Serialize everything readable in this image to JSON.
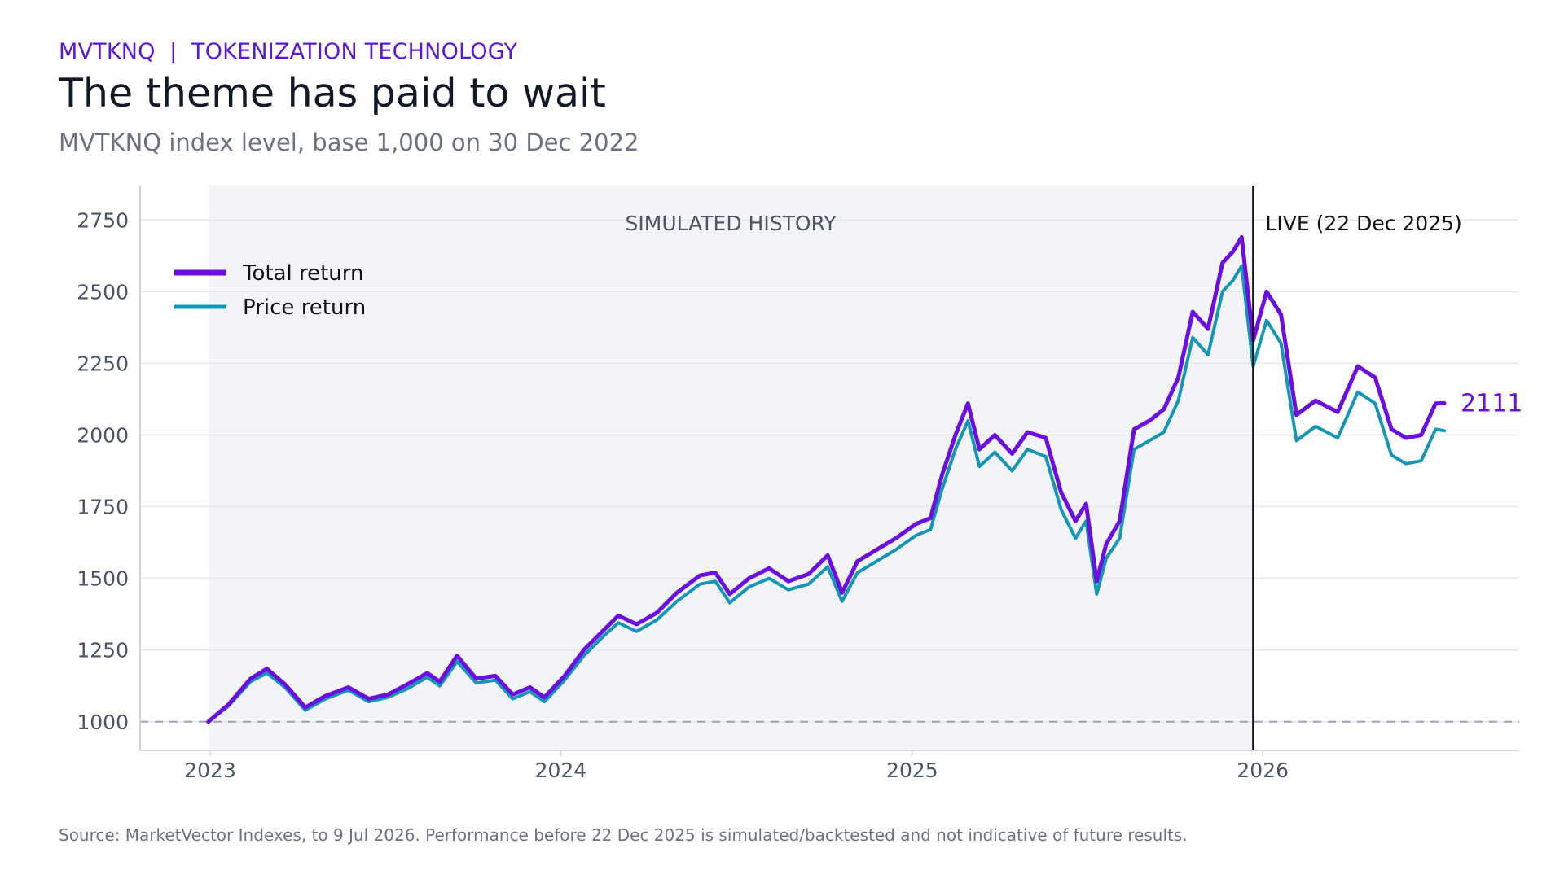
{
  "header": {
    "kicker": "MVTKNQ  |  TOKENIZATION TECHNOLOGY",
    "title": "The theme has paid to wait",
    "subtitle": "MVTKNQ index level, base 1,000 on 30 Dec 2022"
  },
  "footer": {
    "source": "Source: MarketVector Indexes, to 9 Jul 2026. Performance before 22 Dec 2025 is simulated/backtested and not indicative of future results."
  },
  "colors": {
    "kicker": "#5b17d6",
    "total_return": "#6a0fe0",
    "price_return": "#1497b5",
    "band": "#f3f4f8",
    "grid": "#e5e7eb",
    "baseline_dash": "#9ca3af",
    "live_line": "#111111"
  },
  "chart_data": {
    "type": "line",
    "title": "The theme has paid to wait",
    "ylim": [
      900,
      2870
    ],
    "xlim": [
      "2022-10-20",
      "2026-09-25"
    ],
    "yticks": [
      1000,
      1250,
      1500,
      1750,
      2000,
      2250,
      2500,
      2750
    ],
    "xticks": [
      {
        "date": "2023-01-01",
        "label": "2023"
      },
      {
        "date": "2024-01-01",
        "label": "2024"
      },
      {
        "date": "2025-01-01",
        "label": "2025"
      },
      {
        "date": "2026-01-01",
        "label": "2026"
      }
    ],
    "grid": true,
    "legend_position": "top-left",
    "baseline": 1000,
    "shaded_region": {
      "start": "2022-12-30",
      "end": "2025-12-22",
      "label": "SIMULATED HISTORY"
    },
    "live_marker": {
      "date": "2025-12-22",
      "label": "LIVE (22 Dec 2025)"
    },
    "end_label": "2111",
    "series": [
      {
        "name": "Total return",
        "points": [
          [
            "2022-12-30",
            1000
          ],
          [
            "2023-01-20",
            1060
          ],
          [
            "2023-02-12",
            1150
          ],
          [
            "2023-03-01",
            1185
          ],
          [
            "2023-03-20",
            1130
          ],
          [
            "2023-04-10",
            1050
          ],
          [
            "2023-05-01",
            1090
          ],
          [
            "2023-05-25",
            1120
          ],
          [
            "2023-06-15",
            1080
          ],
          [
            "2023-07-05",
            1095
          ],
          [
            "2023-07-25",
            1130
          ],
          [
            "2023-08-15",
            1170
          ],
          [
            "2023-08-28",
            1140
          ],
          [
            "2023-09-15",
            1230
          ],
          [
            "2023-10-05",
            1150
          ],
          [
            "2023-10-25",
            1160
          ],
          [
            "2023-11-12",
            1095
          ],
          [
            "2023-11-30",
            1120
          ],
          [
            "2023-12-15",
            1085
          ],
          [
            "2024-01-05",
            1160
          ],
          [
            "2024-01-25",
            1250
          ],
          [
            "2024-02-15",
            1320
          ],
          [
            "2024-03-01",
            1370
          ],
          [
            "2024-03-20",
            1340
          ],
          [
            "2024-04-10",
            1380
          ],
          [
            "2024-05-01",
            1450
          ],
          [
            "2024-05-25",
            1510
          ],
          [
            "2024-06-10",
            1520
          ],
          [
            "2024-06-25",
            1445
          ],
          [
            "2024-07-15",
            1500
          ],
          [
            "2024-08-05",
            1535
          ],
          [
            "2024-08-25",
            1490
          ],
          [
            "2024-09-15",
            1515
          ],
          [
            "2024-10-05",
            1580
          ],
          [
            "2024-10-20",
            1450
          ],
          [
            "2024-11-05",
            1560
          ],
          [
            "2024-11-25",
            1600
          ],
          [
            "2024-12-15",
            1640
          ],
          [
            "2025-01-05",
            1690
          ],
          [
            "2025-01-20",
            1710
          ],
          [
            "2025-02-01",
            1860
          ],
          [
            "2025-02-15",
            2000
          ],
          [
            "2025-02-28",
            2110
          ],
          [
            "2025-03-12",
            1950
          ],
          [
            "2025-03-28",
            2000
          ],
          [
            "2025-04-15",
            1935
          ],
          [
            "2025-05-01",
            2010
          ],
          [
            "2025-05-20",
            1990
          ],
          [
            "2025-06-05",
            1800
          ],
          [
            "2025-06-20",
            1700
          ],
          [
            "2025-07-01",
            1760
          ],
          [
            "2025-07-12",
            1490
          ],
          [
            "2025-07-22",
            1620
          ],
          [
            "2025-08-05",
            1700
          ],
          [
            "2025-08-20",
            2020
          ],
          [
            "2025-09-05",
            2050
          ],
          [
            "2025-09-20",
            2090
          ],
          [
            "2025-10-05",
            2200
          ],
          [
            "2025-10-20",
            2430
          ],
          [
            "2025-11-05",
            2370
          ],
          [
            "2025-11-20",
            2600
          ],
          [
            "2025-12-01",
            2640
          ],
          [
            "2025-12-10",
            2690
          ],
          [
            "2025-12-22",
            2330
          ],
          [
            "2026-01-05",
            2500
          ],
          [
            "2026-01-20",
            2420
          ],
          [
            "2026-02-05",
            2070
          ],
          [
            "2026-02-25",
            2120
          ],
          [
            "2026-03-20",
            2080
          ],
          [
            "2026-04-10",
            2240
          ],
          [
            "2026-04-28",
            2200
          ],
          [
            "2026-05-15",
            2020
          ],
          [
            "2026-05-30",
            1990
          ],
          [
            "2026-06-15",
            2000
          ],
          [
            "2026-06-30",
            2110
          ],
          [
            "2026-07-09",
            2111
          ]
        ]
      },
      {
        "name": "Price return",
        "points": [
          [
            "2022-12-30",
            1000
          ],
          [
            "2023-01-20",
            1055
          ],
          [
            "2023-02-12",
            1140
          ],
          [
            "2023-03-01",
            1170
          ],
          [
            "2023-03-20",
            1120
          ],
          [
            "2023-04-10",
            1040
          ],
          [
            "2023-05-01",
            1080
          ],
          [
            "2023-05-25",
            1110
          ],
          [
            "2023-06-15",
            1070
          ],
          [
            "2023-07-05",
            1085
          ],
          [
            "2023-07-25",
            1115
          ],
          [
            "2023-08-15",
            1155
          ],
          [
            "2023-08-28",
            1125
          ],
          [
            "2023-09-15",
            1210
          ],
          [
            "2023-10-05",
            1135
          ],
          [
            "2023-10-25",
            1145
          ],
          [
            "2023-11-12",
            1080
          ],
          [
            "2023-11-30",
            1105
          ],
          [
            "2023-12-15",
            1070
          ],
          [
            "2024-01-05",
            1145
          ],
          [
            "2024-01-25",
            1230
          ],
          [
            "2024-02-15",
            1300
          ],
          [
            "2024-03-01",
            1345
          ],
          [
            "2024-03-20",
            1315
          ],
          [
            "2024-04-10",
            1355
          ],
          [
            "2024-05-01",
            1420
          ],
          [
            "2024-05-25",
            1480
          ],
          [
            "2024-06-10",
            1490
          ],
          [
            "2024-06-25",
            1415
          ],
          [
            "2024-07-15",
            1470
          ],
          [
            "2024-08-05",
            1500
          ],
          [
            "2024-08-25",
            1460
          ],
          [
            "2024-09-15",
            1480
          ],
          [
            "2024-10-05",
            1540
          ],
          [
            "2024-10-20",
            1420
          ],
          [
            "2024-11-05",
            1520
          ],
          [
            "2024-11-25",
            1560
          ],
          [
            "2024-12-15",
            1600
          ],
          [
            "2025-01-05",
            1650
          ],
          [
            "2025-01-20",
            1670
          ],
          [
            "2025-02-01",
            1810
          ],
          [
            "2025-02-15",
            1950
          ],
          [
            "2025-02-28",
            2050
          ],
          [
            "2025-03-12",
            1890
          ],
          [
            "2025-03-28",
            1940
          ],
          [
            "2025-04-15",
            1875
          ],
          [
            "2025-05-01",
            1950
          ],
          [
            "2025-05-20",
            1925
          ],
          [
            "2025-06-05",
            1740
          ],
          [
            "2025-06-20",
            1640
          ],
          [
            "2025-07-01",
            1700
          ],
          [
            "2025-07-12",
            1445
          ],
          [
            "2025-07-22",
            1570
          ],
          [
            "2025-08-05",
            1640
          ],
          [
            "2025-08-20",
            1950
          ],
          [
            "2025-09-05",
            1980
          ],
          [
            "2025-09-20",
            2010
          ],
          [
            "2025-10-05",
            2120
          ],
          [
            "2025-10-20",
            2340
          ],
          [
            "2025-11-05",
            2280
          ],
          [
            "2025-11-20",
            2500
          ],
          [
            "2025-12-01",
            2540
          ],
          [
            "2025-12-10",
            2590
          ],
          [
            "2025-12-22",
            2240
          ],
          [
            "2026-01-05",
            2400
          ],
          [
            "2026-01-20",
            2320
          ],
          [
            "2026-02-05",
            1980
          ],
          [
            "2026-02-25",
            2030
          ],
          [
            "2026-03-20",
            1990
          ],
          [
            "2026-04-10",
            2150
          ],
          [
            "2026-04-28",
            2110
          ],
          [
            "2026-05-15",
            1930
          ],
          [
            "2026-05-30",
            1900
          ],
          [
            "2026-06-15",
            1910
          ],
          [
            "2026-06-30",
            2020
          ],
          [
            "2026-07-09",
            2015
          ]
        ]
      }
    ]
  }
}
